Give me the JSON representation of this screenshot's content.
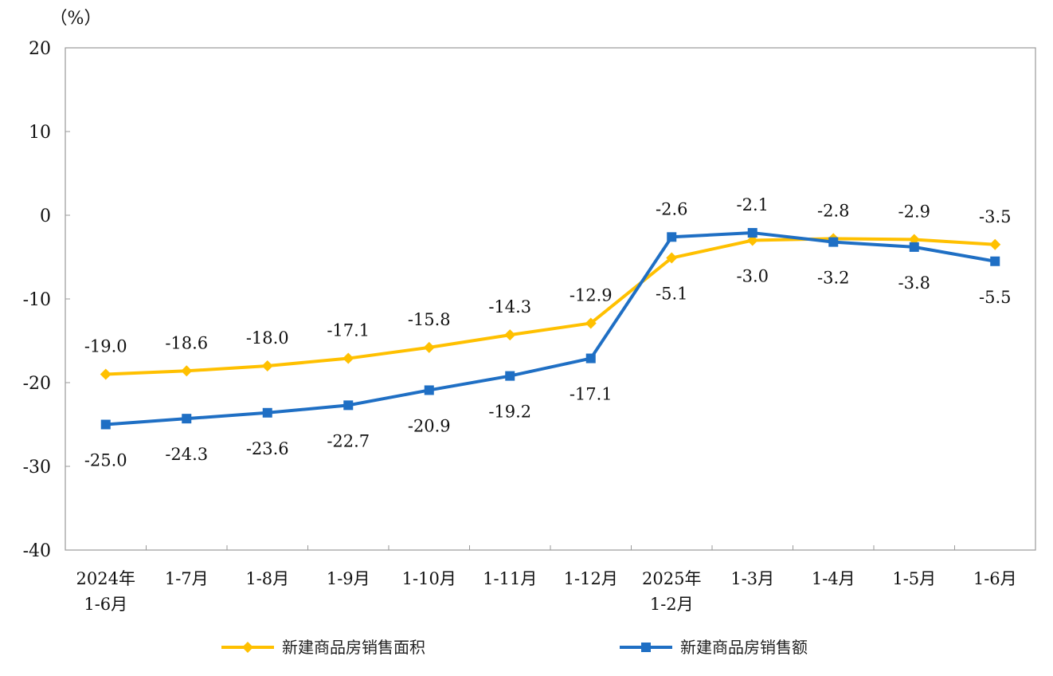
{
  "chart_data": {
    "type": "line",
    "unit_label": "（%）",
    "ylim": [
      -40,
      20
    ],
    "yticks": [
      "20",
      "10",
      "0",
      "-10",
      "-20",
      "-30",
      "-40"
    ],
    "categories": [
      [
        "2024年",
        "1-6月"
      ],
      [
        "1-7月"
      ],
      [
        "1-8月"
      ],
      [
        "1-9月"
      ],
      [
        "1-10月"
      ],
      [
        "1-11月"
      ],
      [
        "1-12月"
      ],
      [
        "2025年",
        "1-2月"
      ],
      [
        "1-3月"
      ],
      [
        "1-4月"
      ],
      [
        "1-5月"
      ],
      [
        "1-6月"
      ]
    ],
    "legend_position": "bottom",
    "series": [
      {
        "name": "新建商品房销售面积",
        "color": "#FFC000",
        "marker": "diamond",
        "values": [
          -19.0,
          -18.6,
          -18.0,
          -17.1,
          -15.8,
          -14.3,
          -12.9,
          -5.1,
          -3.0,
          -2.8,
          -2.9,
          -3.5
        ],
        "labels": [
          "-19.0",
          "-18.6",
          "-18.0",
          "-17.1",
          "-15.8",
          "-14.3",
          "-12.9",
          "-5.1",
          "-3.0",
          "-2.8",
          "-2.9",
          "-3.5"
        ]
      },
      {
        "name": "新建商品房销售额",
        "color": "#1F6FC4",
        "marker": "square",
        "values": [
          -25.0,
          -24.3,
          -23.6,
          -22.7,
          -20.9,
          -19.2,
          -17.1,
          -2.6,
          -2.1,
          -3.2,
          -3.8,
          -5.5
        ],
        "labels": [
          "-25.0",
          "-24.3",
          "-23.6",
          "-22.7",
          "-20.9",
          "-19.2",
          "-17.1",
          "-2.6",
          "-2.1",
          "-3.2",
          "-3.8",
          "-5.5"
        ]
      }
    ]
  }
}
